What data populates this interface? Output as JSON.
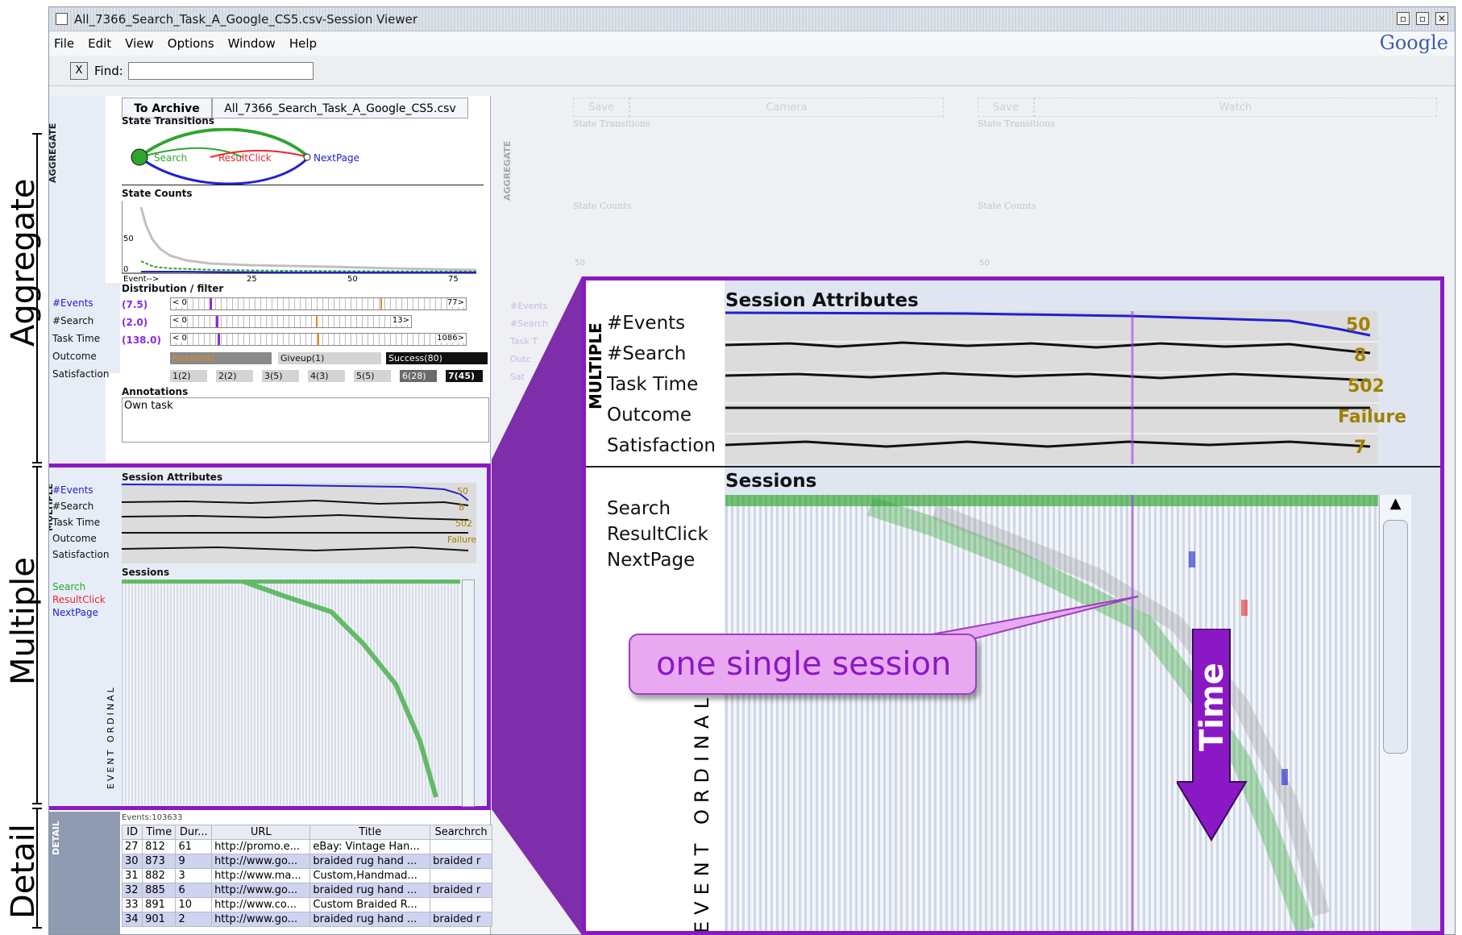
{
  "outer_labels": {
    "aggregate": "Aggregate",
    "multiple": "Multiple",
    "detail": "Detail"
  },
  "window": {
    "title": "All_7366_Search_Task_A_Google_CS5.csv-Session Viewer",
    "logo": "Google",
    "menu": [
      "File",
      "Edit",
      "View",
      "Options",
      "Window",
      "Help"
    ],
    "find_close": "X",
    "find_label": "Find:",
    "find_value": ""
  },
  "left": {
    "tab_archive": "To Archive",
    "tab_file": "All_7366_Search_Task_A_Google_CS5.csv",
    "aggregate_tag": "AGGREGATE",
    "state_transitions_title": "State Transitions",
    "states": [
      "Search",
      "ResultClick",
      "NextPage"
    ],
    "state_counts_title": "State Counts",
    "counts_axis": {
      "y_ticks": [
        "50",
        "0"
      ],
      "x_ticks": [
        "Event-->",
        "25",
        "50",
        "75"
      ]
    },
    "distribution_title": "Distribution / filter",
    "attributes": [
      {
        "name": "#Events",
        "value": "(7.5)",
        "min": "< 0",
        "max": "77>"
      },
      {
        "name": "#Search",
        "value": "(2.0)",
        "min": "< 0",
        "max": "13>"
      },
      {
        "name": "Task Time",
        "value": "(138.0)",
        "min": "< 0",
        "max": "1086>"
      },
      {
        "name": "Outcome",
        "value": "",
        "min": "",
        "max": ""
      },
      {
        "name": "Satisfaction",
        "value": "",
        "min": "",
        "max": ""
      }
    ],
    "outcomes": [
      "Failure(9)",
      "Giveup(1)",
      "Success(80)"
    ],
    "satisfaction": [
      "1(2)",
      "2(2)",
      "3(5)",
      "4(3)",
      "5(5)",
      "6(28)",
      "7(45)"
    ],
    "annotations_title": "Annotations",
    "annotations_text": "Own task",
    "multiple_tag": "MULTIPLE",
    "session_attributes_title": "Session Attributes",
    "sessions_title": "Sessions",
    "event_ordinal": "EVENT ORDINAL",
    "small_values": {
      "events": "50",
      "search": "8",
      "time": "502",
      "outcome": "Failure"
    },
    "detail_tag": "DETAIL",
    "detail_caption": "Events:103633",
    "table": {
      "columns": [
        "ID",
        "Time",
        "Dur...",
        "URL",
        "Title",
        "Searchrch"
      ],
      "rows": [
        [
          "27",
          "812",
          "61",
          "http://promo.e...",
          "eBay: Vintage Han...",
          ""
        ],
        [
          "30",
          "873",
          "9",
          "http://www.go...",
          "braided rug hand ...",
          "braided r"
        ],
        [
          "31",
          "882",
          "3",
          "http://www.ma...",
          "Custom,Handmad...",
          ""
        ],
        [
          "32",
          "885",
          "6",
          "http://www.go...",
          "braided rug hand ...",
          "braided r"
        ],
        [
          "33",
          "891",
          "10",
          "http://www.co...",
          "Custom Braided R...",
          ""
        ],
        [
          "34",
          "901",
          "2",
          "http://www.go...",
          "braided rug hand ...",
          "braided r"
        ]
      ]
    }
  },
  "panes": [
    {
      "save": "Save",
      "name": "Camera"
    },
    {
      "save": "Save",
      "name": "Watch"
    }
  ],
  "faded_labels": {
    "aggregate": "AGGREGATE",
    "state_transitions": "State Transitions",
    "state_counts": "State Counts",
    "tick_50": "50",
    "attrs": [
      "#Events",
      "#Search",
      "Task T",
      "Outc",
      "Sat"
    ]
  },
  "zoom": {
    "multiple_tag": "MULTIPLE",
    "session_attributes_title": "Session Attributes",
    "sessions_title": "Sessions",
    "attributes": [
      "#Events",
      "#Search",
      "Task Time",
      "Outcome",
      "Satisfaction"
    ],
    "values": {
      "events": "50",
      "search": "8",
      "time": "502",
      "outcome": "Failure",
      "satisfaction": "7"
    },
    "legend": [
      "Search",
      "ResultClick",
      "NextPage"
    ],
    "event_ordinal": "EVENT ORDINAL",
    "callout": "one single session",
    "time_label": "Time"
  },
  "colors": {
    "search": "#2ea52e",
    "result_click": "#e8262b",
    "next_page": "#2020d0",
    "accent_purple": "#8a18c4"
  }
}
